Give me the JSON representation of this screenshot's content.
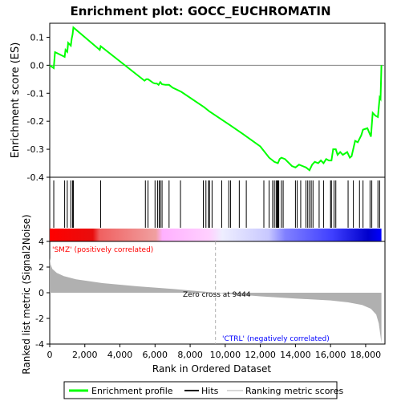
{
  "chart_data": {
    "type": "line",
    "title": "Enrichment plot: GOCC_EUCHROMATIN",
    "es_panel": {
      "ylabel": "Enrichment score (ES)",
      "ylim": [
        -0.4,
        0.15
      ],
      "yticks": [
        0.1,
        0.0,
        -0.1,
        -0.2,
        -0.3,
        -0.4
      ],
      "ytick_labels": [
        "0.1",
        "0.0",
        "-0.1",
        "-0.2",
        "-0.3",
        "-0.4"
      ],
      "series": [
        {
          "name": "Enrichment profile",
          "color": "#00ff00",
          "points": [
            [
              0,
              0.0
            ],
            [
              230,
              -0.01
            ],
            [
              300,
              0.047
            ],
            [
              850,
              0.03
            ],
            [
              900,
              0.055
            ],
            [
              1000,
              0.048
            ],
            [
              1050,
              0.08
            ],
            [
              1200,
              0.07
            ],
            [
              1250,
              0.095
            ],
            [
              1300,
              0.11
            ],
            [
              1350,
              0.135
            ],
            [
              2850,
              0.055
            ],
            [
              2900,
              0.068
            ],
            [
              5400,
              -0.055
            ],
            [
              5500,
              -0.05
            ],
            [
              5600,
              -0.05
            ],
            [
              5900,
              -0.063
            ],
            [
              6000,
              -0.065
            ],
            [
              6100,
              -0.065
            ],
            [
              6200,
              -0.07
            ],
            [
              6300,
              -0.06
            ],
            [
              6400,
              -0.068
            ],
            [
              6600,
              -0.07
            ],
            [
              6800,
              -0.07
            ],
            [
              7000,
              -0.08
            ],
            [
              7500,
              -0.095
            ],
            [
              8800,
              -0.15
            ],
            [
              9100,
              -0.165
            ],
            [
              10300,
              -0.215
            ],
            [
              11000,
              -0.245
            ],
            [
              12000,
              -0.29
            ],
            [
              12500,
              -0.33
            ],
            [
              12800,
              -0.345
            ],
            [
              13000,
              -0.35
            ],
            [
              13100,
              -0.335
            ],
            [
              13200,
              -0.33
            ],
            [
              13400,
              -0.335
            ],
            [
              13800,
              -0.36
            ],
            [
              14000,
              -0.365
            ],
            [
              14200,
              -0.355
            ],
            [
              14400,
              -0.36
            ],
            [
              14600,
              -0.365
            ],
            [
              14800,
              -0.375
            ],
            [
              14950,
              -0.355
            ],
            [
              15100,
              -0.345
            ],
            [
              15300,
              -0.35
            ],
            [
              15450,
              -0.34
            ],
            [
              15600,
              -0.35
            ],
            [
              15750,
              -0.335
            ],
            [
              15900,
              -0.34
            ],
            [
              16050,
              -0.34
            ],
            [
              16150,
              -0.3
            ],
            [
              16300,
              -0.3
            ],
            [
              16400,
              -0.32
            ],
            [
              16550,
              -0.31
            ],
            [
              16700,
              -0.32
            ],
            [
              16950,
              -0.31
            ],
            [
              17100,
              -0.33
            ],
            [
              17200,
              -0.325
            ],
            [
              17400,
              -0.27
            ],
            [
              17550,
              -0.275
            ],
            [
              17750,
              -0.25
            ],
            [
              17850,
              -0.23
            ],
            [
              18100,
              -0.225
            ],
            [
              18300,
              -0.255
            ],
            [
              18400,
              -0.17
            ],
            [
              18550,
              -0.18
            ],
            [
              18700,
              -0.185
            ],
            [
              18800,
              -0.115
            ],
            [
              18850,
              -0.12
            ],
            [
              18900,
              0.0
            ]
          ]
        }
      ],
      "zero_line": 0.0
    },
    "hits_panel": {
      "name": "Hits",
      "positions": [
        230,
        850,
        1000,
        1200,
        1300,
        1350,
        2900,
        5450,
        5600,
        6000,
        6150,
        6250,
        6300,
        6400,
        6800,
        7450,
        8750,
        8900,
        9050,
        9100,
        9250,
        9800,
        10200,
        10300,
        10800,
        11200,
        12200,
        12500,
        12700,
        12800,
        12900,
        12950,
        13000,
        13050,
        13200,
        13300,
        14000,
        14100,
        14300,
        14600,
        14700,
        14800,
        14900,
        15000,
        15350,
        15600,
        16000,
        16050,
        16200,
        16300,
        17000,
        17300,
        17650,
        17850,
        18250,
        18350,
        18700,
        18800
      ]
    },
    "rank_metric_panel": {
      "name": "Ranking metric scores",
      "ylabel": "Ranked list metric (Signal2Noise)",
      "ylim": [
        -4,
        4
      ],
      "yticks": [
        4,
        2,
        0,
        -2,
        -4
      ],
      "ytick_labels": [
        "4",
        "2",
        "0",
        "-2",
        "-4"
      ],
      "xlabel": "Rank in Ordered Dataset",
      "xlim": [
        0,
        19100
      ],
      "xticks": [
        0,
        2000,
        4000,
        6000,
        8000,
        10000,
        12000,
        14000,
        16000,
        18000
      ],
      "xtick_labels": [
        "0",
        "2,000",
        "4,000",
        "6,000",
        "8,000",
        "10,000",
        "12,000",
        "14,000",
        "16,000",
        "18,000"
      ],
      "total_rank": 18900,
      "zero_cross": 9444,
      "zero_cross_label": "Zero cross at 9444",
      "pos_label": "'SMZ' (positively correlated)",
      "neg_label": "'CTRL' (negatively correlated)",
      "metric_profile": [
        [
          0,
          2.7
        ],
        [
          50,
          2.2
        ],
        [
          150,
          1.85
        ],
        [
          400,
          1.55
        ],
        [
          800,
          1.3
        ],
        [
          1500,
          1.05
        ],
        [
          3000,
          0.75
        ],
        [
          5000,
          0.5
        ],
        [
          7000,
          0.3
        ],
        [
          9444,
          0.0
        ],
        [
          12000,
          -0.28
        ],
        [
          14000,
          -0.45
        ],
        [
          16000,
          -0.6
        ],
        [
          17000,
          -0.75
        ],
        [
          17800,
          -0.95
        ],
        [
          18300,
          -1.25
        ],
        [
          18600,
          -1.7
        ],
        [
          18750,
          -2.4
        ],
        [
          18850,
          -3.4
        ],
        [
          18900,
          -3.9
        ]
      ]
    },
    "legend": {
      "placement": "bottom",
      "items": [
        {
          "label": "Enrichment profile",
          "color": "#00ff00"
        },
        {
          "label": "Hits",
          "color": "#000000"
        },
        {
          "label": "Ranking metric scores",
          "color": "#c0c0c0"
        }
      ]
    },
    "colors": {
      "pos_label": "#ff0000",
      "neg_label": "#0000ff",
      "metric_fill": "#b0b0b0",
      "frame": "#000000"
    }
  }
}
